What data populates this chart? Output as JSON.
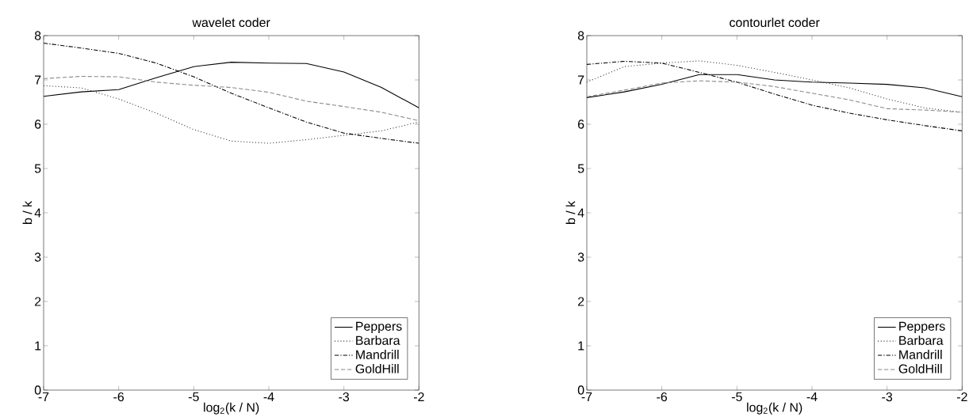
{
  "chart_data": [
    {
      "type": "line",
      "title": "wavelet coder",
      "xlabel": "log$_{2}$(k / N)",
      "ylabel": "b / k",
      "x": [
        -7,
        -6.5,
        -6,
        -5.5,
        -5,
        -4.5,
        -4,
        -3.5,
        -3,
        -2.5,
        -2
      ],
      "xlim": [
        -7,
        -2
      ],
      "xticks": [
        -7,
        -6,
        -5,
        -4,
        -3,
        -2
      ],
      "ylim": [
        0,
        8
      ],
      "yticks": [
        0,
        1,
        2,
        3,
        4,
        5,
        6,
        7,
        8
      ],
      "legend": "bottom right",
      "grid": false,
      "marker": "none",
      "series": [
        {
          "name": "Peppers",
          "color": "#000000",
          "line_style": "solid",
          "values": [
            6.63,
            6.73,
            6.78,
            7.05,
            7.3,
            7.4,
            7.38,
            7.37,
            7.18,
            6.83,
            6.37
          ]
        },
        {
          "name": "Barbara",
          "color": "#333333",
          "line_style": "dotted",
          "values": [
            6.87,
            6.82,
            6.57,
            6.25,
            5.88,
            5.62,
            5.57,
            5.65,
            5.75,
            5.85,
            6.05
          ]
        },
        {
          "name": "Mandrill",
          "color": "#000000",
          "line_style": "dashdot",
          "values": [
            7.83,
            7.72,
            7.6,
            7.38,
            7.07,
            6.7,
            6.37,
            6.05,
            5.8,
            5.68,
            5.57
          ]
        },
        {
          "name": "GoldHill",
          "color": "#888888",
          "line_style": "dashed",
          "values": [
            7.03,
            7.08,
            7.07,
            6.95,
            6.88,
            6.83,
            6.72,
            6.52,
            6.4,
            6.27,
            6.08
          ]
        }
      ]
    },
    {
      "type": "line",
      "title": "contourlet coder",
      "xlabel": "log$_{2}$(k / N)",
      "ylabel": "b / k",
      "x": [
        -7,
        -6.5,
        -6,
        -5.5,
        -5,
        -4.5,
        -4,
        -3.5,
        -3,
        -2.5,
        -2
      ],
      "xlim": [
        -7,
        -2
      ],
      "xticks": [
        -7,
        -6,
        -5,
        -4,
        -3,
        -2
      ],
      "ylim": [
        0,
        8
      ],
      "yticks": [
        0,
        1,
        2,
        3,
        4,
        5,
        6,
        7,
        8
      ],
      "legend": "bottom right",
      "grid": false,
      "marker": "none",
      "series": [
        {
          "name": "Peppers",
          "color": "#000000",
          "line_style": "solid",
          "values": [
            6.6,
            6.73,
            6.9,
            7.12,
            7.12,
            7.0,
            6.95,
            6.93,
            6.9,
            6.82,
            6.62
          ]
        },
        {
          "name": "Barbara",
          "color": "#333333",
          "line_style": "dotted",
          "values": [
            6.95,
            7.3,
            7.38,
            7.43,
            7.33,
            7.17,
            7.0,
            6.82,
            6.57,
            6.37,
            6.27
          ]
        },
        {
          "name": "Mandrill",
          "color": "#000000",
          "line_style": "dashdot",
          "values": [
            7.35,
            7.42,
            7.38,
            7.17,
            6.95,
            6.68,
            6.43,
            6.25,
            6.1,
            5.97,
            5.85
          ]
        },
        {
          "name": "GoldHill",
          "color": "#888888",
          "line_style": "dashed",
          "values": [
            6.62,
            6.77,
            6.93,
            6.98,
            6.95,
            6.85,
            6.7,
            6.55,
            6.35,
            6.32,
            6.27
          ]
        }
      ]
    }
  ]
}
